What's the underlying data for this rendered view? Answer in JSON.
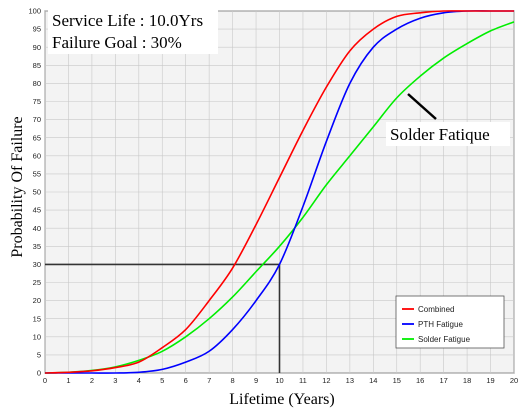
{
  "annotations": {
    "service_life": "Service Life : 10.0Yrs",
    "failure_goal": "Failure Goal : 30%",
    "solder_label": "Solder Fatique"
  },
  "chart_data": {
    "type": "line",
    "title": "",
    "xlabel": "Lifetime (Years)",
    "ylabel": "Probability Of Failure",
    "xlim": [
      0,
      20
    ],
    "ylim": [
      0,
      100
    ],
    "xticks": [
      0,
      1,
      2,
      3,
      4,
      5,
      6,
      7,
      8,
      9,
      10,
      11,
      12,
      13,
      14,
      15,
      16,
      17,
      18,
      19,
      20
    ],
    "yticks": [
      0,
      5,
      10,
      15,
      20,
      25,
      30,
      35,
      40,
      45,
      50,
      55,
      60,
      65,
      70,
      75,
      80,
      85,
      90,
      95,
      100
    ],
    "grid": true,
    "legend_position": "bottom-right",
    "series": [
      {
        "name": "Combined",
        "color": "#ff0000",
        "x": [
          0,
          1,
          2,
          3,
          4,
          5,
          6,
          7,
          8,
          9,
          10,
          11,
          12,
          13,
          14,
          15,
          16,
          17,
          18,
          19,
          20
        ],
        "y": [
          0,
          0.2,
          0.6,
          1.5,
          3,
          7,
          12,
          20,
          29,
          41,
          54,
          67,
          79,
          89,
          95,
          98.5,
          99.5,
          100,
          100,
          100,
          100
        ]
      },
      {
        "name": "PTH Fatigue",
        "color": "#0000ff",
        "x": [
          0,
          1,
          2,
          3,
          4,
          5,
          6,
          7,
          8,
          9,
          10,
          11,
          12,
          13,
          14,
          15,
          16,
          17,
          18,
          19,
          20
        ],
        "y": [
          0,
          0,
          0,
          0,
          0.2,
          1,
          3,
          6,
          12,
          20,
          30,
          46,
          64,
          80,
          90,
          95,
          98,
          99.5,
          100,
          100,
          100
        ]
      },
      {
        "name": "Solder Fatigue",
        "color": "#00ee00",
        "x": [
          0,
          1,
          2,
          3,
          4,
          5,
          6,
          7,
          8,
          9,
          10,
          11,
          12,
          13,
          14,
          15,
          16,
          17,
          18,
          19,
          20
        ],
        "y": [
          0,
          0.2,
          0.7,
          1.7,
          3.5,
          6,
          10,
          15,
          21,
          28,
          35,
          43,
          52,
          60,
          68,
          76,
          82,
          87,
          91,
          94.5,
          97
        ]
      }
    ],
    "reference_lines": [
      {
        "label": "Failure Goal",
        "value": 30,
        "axis": "y"
      },
      {
        "label": "Service Life",
        "value": 10,
        "axis": "x"
      }
    ]
  }
}
